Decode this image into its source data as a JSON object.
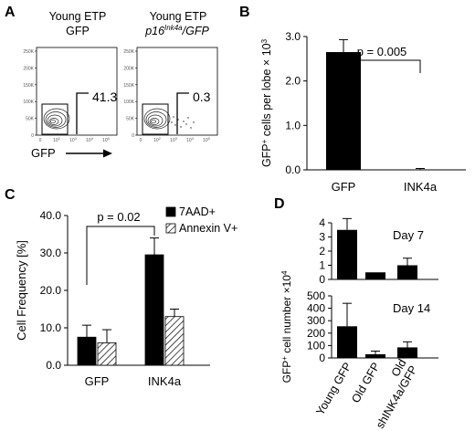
{
  "panels": {
    "A": {
      "letter": "A",
      "left": {
        "title_line1": "Young ETP",
        "title_line2": "GFP",
        "gate_value": "41.3"
      },
      "right": {
        "title_line1": "Young ETP",
        "title_gene": "p16",
        "title_superscript": "Ink4a",
        "title_suffix": "/GFP",
        "gate_value": "0.3"
      },
      "y_ticks": [
        "0",
        "50K",
        "100K",
        "150K",
        "200K",
        "250K"
      ],
      "x_ticks": [
        "0",
        "10",
        "10",
        "10",
        "10"
      ],
      "x_tick_exponents": [
        "",
        "2",
        "3",
        "4",
        "5"
      ],
      "xlabel": "GFP"
    },
    "B": {
      "letter": "B"
    },
    "C": {
      "letter": "C"
    },
    "D": {
      "letter": "D",
      "ylabel_base": "GFP",
      "ylabel_sup": "+",
      "ylabel_rest": " cell number ×10",
      "ylabel_exp": "4"
    }
  },
  "chart_data": [
    {
      "panel": "B",
      "type": "bar",
      "categories": [
        "GFP",
        "INK4a"
      ],
      "values": [
        2.65,
        0.01
      ],
      "errors": [
        0.28,
        0.02
      ],
      "ylim": [
        0,
        3.0
      ],
      "yticks": [
        "0.0",
        "1.0",
        "2.0",
        "3.0"
      ],
      "ytick_values": [
        0,
        1,
        2,
        3
      ],
      "ylabel_base": "GFP",
      "ylabel_sup": "+",
      "ylabel_rest": " cells per lobe × 10",
      "ylabel_exp": "3",
      "annotation": "p = 0.005",
      "colors": [
        "#000000",
        "#000000"
      ]
    },
    {
      "panel": "C",
      "type": "bar",
      "categories": [
        "GFP",
        "INK4a"
      ],
      "ylabel": "Cell Frequency [%]",
      "ylim": [
        0,
        40
      ],
      "yticks": [
        "0.0",
        "10.0",
        "20.0",
        "30.0",
        "40.0"
      ],
      "ytick_values": [
        0,
        10,
        20,
        30,
        40
      ],
      "series": [
        {
          "name": "7AAD+",
          "values": [
            7.5,
            29.5
          ],
          "errors": [
            3.2,
            4.5
          ],
          "fill": "solid"
        },
        {
          "name": "Annexin V+",
          "values": [
            6.0,
            13.0
          ],
          "errors": [
            3.5,
            2.0
          ],
          "fill": "hatched"
        }
      ],
      "annotation": "p = 0.02",
      "legend_position": "top-right"
    },
    {
      "panel": "D-top",
      "type": "bar",
      "title": "Day 7",
      "categories": [
        "Young GFP",
        "Old GFP",
        "Old shINK4a/GFP"
      ],
      "values": [
        3.5,
        0.5,
        1.0
      ],
      "errors": [
        0.8,
        0.0,
        0.5
      ],
      "ylim": [
        0,
        4
      ],
      "yticks": [
        "0",
        "1",
        "2",
        "3",
        "4"
      ],
      "ytick_values": [
        0,
        1,
        2,
        3,
        4
      ]
    },
    {
      "panel": "D-bottom",
      "type": "bar",
      "title": "Day 14",
      "categories": [
        "Young GFP",
        "Old GFP",
        "Old shINK4a/GFP"
      ],
      "category_lines": [
        [
          "Young GFP"
        ],
        [
          "Old GFP"
        ],
        [
          "Old",
          "shINK4a/GFP"
        ]
      ],
      "values": [
        255,
        30,
        85
      ],
      "errors": [
        185,
        25,
        45
      ],
      "ylim": [
        0,
        500
      ],
      "yticks": [
        "0",
        "100",
        "200",
        "300",
        "400",
        "500"
      ],
      "ytick_values": [
        0,
        100,
        200,
        300,
        400,
        500
      ]
    }
  ]
}
